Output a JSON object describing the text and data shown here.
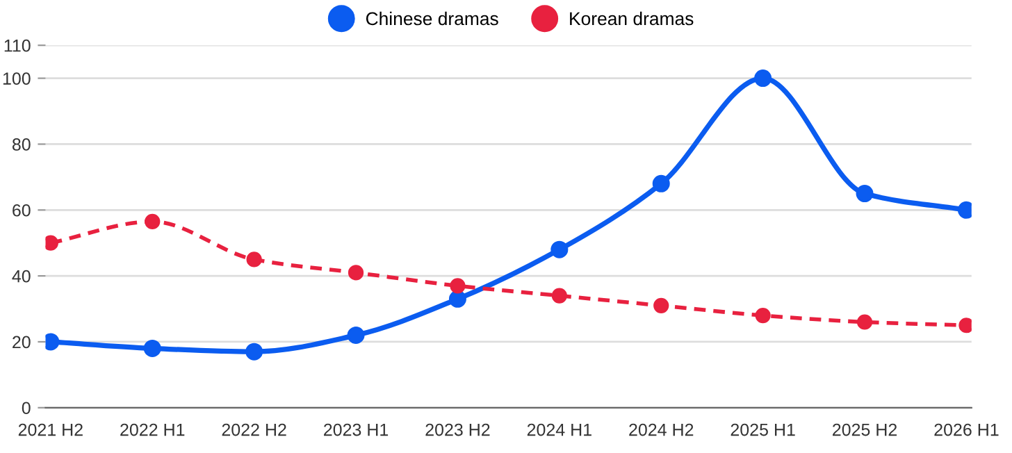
{
  "chart_data": {
    "type": "line",
    "categories": [
      "2021 H2",
      "2022 H1",
      "2022 H2",
      "2023 H1",
      "2023 H2",
      "2024 H1",
      "2024 H2",
      "2025 H1",
      "2025 H2",
      "2026 H1"
    ],
    "series": [
      {
        "name": "Chinese dramas",
        "color": "#0b5cf0",
        "line_style": "solid",
        "values": [
          20,
          18,
          17,
          22,
          33,
          48,
          68,
          100,
          65,
          60
        ]
      },
      {
        "name": "Korean dramas",
        "color": "#e8213f",
        "line_style": "dashed",
        "values": [
          50,
          56.5,
          45,
          41,
          37,
          34,
          31,
          28,
          26,
          25
        ]
      }
    ],
    "ylim": [
      0,
      110
    ],
    "yticks": [
      0,
      20,
      40,
      60,
      80,
      100,
      110
    ],
    "grid": "y",
    "legend": "top",
    "marker": "circle"
  }
}
